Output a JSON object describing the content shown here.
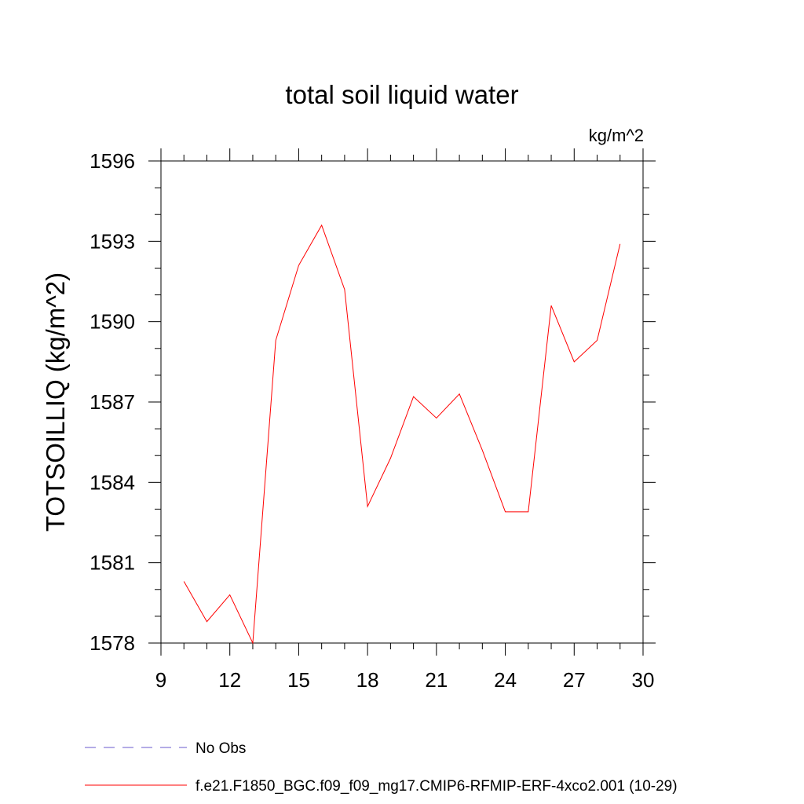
{
  "chart_data": {
    "type": "line",
    "title": "total soil liquid water",
    "units_label": "kg/m^2",
    "ylabel": "TOTSOILLIQ  (kg/m^2)",
    "xlabel": "",
    "xlim": [
      9,
      30
    ],
    "ylim": [
      1578,
      1596
    ],
    "xticks": [
      9,
      12,
      15,
      18,
      21,
      24,
      27,
      30
    ],
    "yticks": [
      1578,
      1581,
      1584,
      1587,
      1590,
      1593,
      1596
    ],
    "x_minor_step": 1,
    "y_minor_step": 1,
    "grid": false,
    "legend_position": "bottom-left",
    "series": [
      {
        "name": "No Obs",
        "style": "dashed",
        "color": "#6a5acd",
        "x": [],
        "values": []
      },
      {
        "name": "f.e21.F1850_BGC.f09_f09_mg17.CMIP6-RFMIP-ERF-4xco2.001 (10-29)",
        "style": "solid",
        "color": "#ff0000",
        "x": [
          10,
          11,
          12,
          13,
          14,
          15,
          16,
          17,
          18,
          19,
          20,
          21,
          22,
          23,
          24,
          25,
          26,
          27,
          28,
          29
        ],
        "values": [
          1580.3,
          1578.8,
          1579.8,
          1578.0,
          1589.3,
          1592.1,
          1593.6,
          1591.2,
          1583.1,
          1584.9,
          1587.2,
          1586.4,
          1587.3,
          1585.2,
          1582.9,
          1582.9,
          1590.6,
          1588.5,
          1589.3,
          1592.9
        ]
      }
    ]
  }
}
